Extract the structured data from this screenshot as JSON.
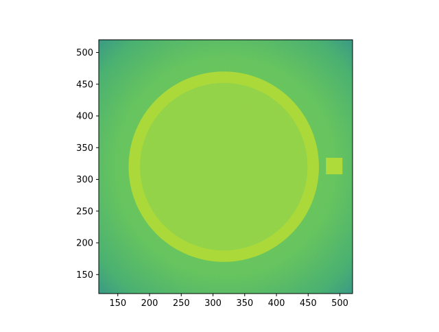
{
  "chart_data": {
    "type": "heatmap",
    "colormap": "viridis",
    "title": "",
    "xlabel": "",
    "ylabel": "",
    "xlim": [
      120,
      520
    ],
    "ylim": [
      120,
      520
    ],
    "grid": false,
    "x_ticks": [
      150,
      200,
      250,
      300,
      350,
      400,
      450,
      500
    ],
    "y_ticks": [
      150,
      200,
      250,
      300,
      350,
      400,
      450,
      500
    ],
    "features": {
      "ring": {
        "center": [
          317,
          320
        ],
        "outer_radius": 150,
        "inner_radius": 132
      },
      "square": {
        "x": [
          478,
          504
        ],
        "y": [
          308,
          334
        ]
      }
    },
    "colors": {
      "corner": "#2b9189",
      "background": "#5ec35c",
      "interior": "#8fd444",
      "ring": "#a9da33",
      "square": "#aedc35"
    }
  }
}
